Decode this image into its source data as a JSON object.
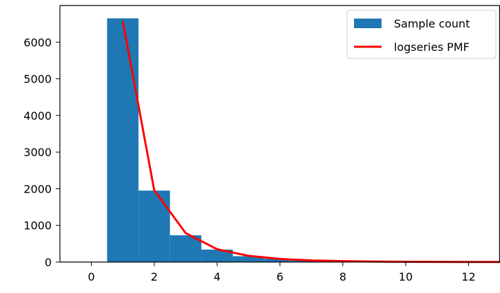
{
  "chart_data": {
    "type": "bar",
    "title": "",
    "xlabel": "",
    "ylabel": "",
    "xlim": [
      -1.0,
      13.0
    ],
    "ylim": [
      0,
      7000
    ],
    "x_ticks": [
      0,
      2,
      4,
      6,
      8,
      10,
      12
    ],
    "y_ticks": [
      0,
      1000,
      2000,
      3000,
      4000,
      5000,
      6000
    ],
    "grid": false,
    "legend_position": "top-right",
    "colors": {
      "bars": "#1f77b4",
      "line": "#ff0000",
      "axis": "#000000"
    },
    "series": [
      {
        "name": "Sample count",
        "kind": "bar",
        "bin_width": 1,
        "x": [
          1,
          2,
          3,
          4,
          5,
          6,
          7,
          8,
          9,
          10,
          11,
          12,
          13
        ],
        "values": [
          6650,
          1950,
          730,
          340,
          160,
          90,
          45,
          25,
          12,
          8,
          5,
          3,
          2
        ]
      },
      {
        "name": "logseries PMF",
        "kind": "line",
        "x": [
          1,
          2,
          3,
          4,
          5,
          6,
          7,
          8,
          9,
          10,
          11,
          12,
          13
        ],
        "values": [
          6570,
          1960,
          790,
          350,
          170,
          85,
          45,
          25,
          14,
          8,
          5,
          3,
          2
        ]
      }
    ]
  }
}
